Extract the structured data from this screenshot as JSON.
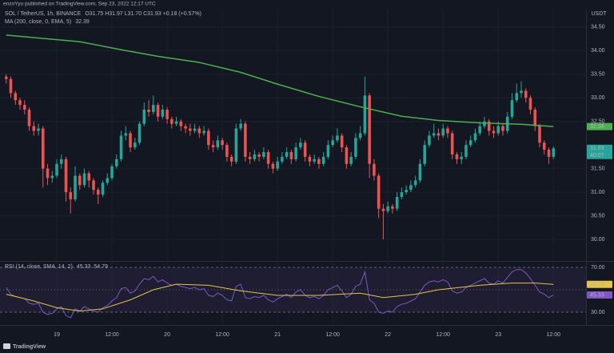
{
  "header": {
    "publisher": "enzoYyu published on TradingView.com, Sep 23, 2022 12:17 UTC"
  },
  "footer": {
    "logo": "TradingView"
  },
  "chart_data": [
    {
      "type": "candlestick",
      "title": "SOL / TetherUS, 1h, BINANCE",
      "ohlc_text": "O31.75 H31.97 L31.70 C31.93 +0.18 (+0.57%)",
      "currency": "USDT",
      "countdown": "40:07",
      "up_color": "#26a69a",
      "down_color": "#ef5350",
      "grid": true,
      "xlim": [
        -1,
        124
      ],
      "xticks": [
        {
          "value": 11,
          "label": "19"
        },
        {
          "value": 23,
          "label": "12:00"
        },
        {
          "value": 35,
          "label": "20"
        },
        {
          "value": 47,
          "label": "12:00"
        },
        {
          "value": 59,
          "label": "21"
        },
        {
          "value": 71,
          "label": "12:00"
        },
        {
          "value": 83,
          "label": "22"
        },
        {
          "value": 95,
          "label": "12:00"
        },
        {
          "value": 107,
          "label": "23"
        },
        {
          "value": 119,
          "label": "12:00"
        }
      ],
      "ylim": [
        29.56,
        34.87
      ],
      "yticks": [
        {
          "value": 30,
          "label": "30.00"
        },
        {
          "value": 30.5,
          "label": "30.50"
        },
        {
          "value": 31,
          "label": "31.00"
        },
        {
          "value": 31.5,
          "label": "31.50"
        },
        {
          "value": 32.5,
          "label": "32.50"
        },
        {
          "value": 33,
          "label": "33.00"
        },
        {
          "value": 33.5,
          "label": "33.50"
        },
        {
          "value": 34,
          "label": "34.00"
        },
        {
          "value": 34.5,
          "label": "34.50"
        }
      ],
      "open": [
        33.45,
        33.4,
        33.1,
        32.95,
        32.85,
        32.75,
        32.4,
        32.3,
        32.35,
        31.5,
        31.3,
        31.35,
        31.6,
        31.7,
        31.0,
        30.85,
        31.35,
        31.15,
        31.4,
        31.25,
        31.05,
        30.95,
        31.2,
        31.3,
        31.55,
        31.7,
        32.2,
        32.25,
        31.95,
        32.05,
        32.45,
        32.75,
        32.7,
        32.85,
        32.6,
        32.75,
        32.55,
        32.45,
        32.5,
        32.4,
        32.35,
        32.3,
        32.35,
        32.25,
        32.3,
        32.0,
        31.95,
        32.1,
        32.0,
        31.75,
        31.65,
        32.35,
        32.45,
        31.75,
        31.7,
        31.8,
        31.75,
        31.85,
        31.6,
        31.5,
        31.65,
        31.75,
        31.85,
        31.7,
        31.95,
        32.05,
        31.75,
        31.65,
        31.7,
        31.6,
        31.75,
        32.0,
        32.1,
        32.2,
        31.95,
        31.6,
        31.75,
        32.15,
        32.25,
        33.05,
        31.6,
        31.35,
        30.65,
        30.6,
        30.7,
        30.65,
        30.9,
        31.0,
        31.05,
        31.15,
        31.25,
        31.6,
        32.0,
        32.2,
        32.25,
        32.2,
        32.35,
        32.25,
        31.8,
        31.7,
        31.75,
        32.0,
        32.1,
        32.25,
        32.4,
        32.5,
        32.3,
        32.25,
        32.4,
        32.3,
        32.6,
        32.95,
        33.1,
        33.15,
        33.0,
        32.75,
        32.4,
        32.05,
        31.9,
        31.75
      ],
      "high": [
        33.5,
        33.45,
        33.15,
        33.0,
        32.95,
        32.8,
        32.5,
        32.45,
        32.4,
        31.6,
        31.45,
        31.7,
        31.8,
        31.75,
        31.1,
        31.55,
        31.4,
        31.5,
        31.45,
        31.3,
        31.1,
        31.25,
        31.4,
        31.6,
        31.8,
        32.3,
        32.4,
        32.3,
        32.15,
        32.5,
        32.9,
        32.95,
        33.05,
        32.9,
        32.85,
        32.8,
        32.6,
        32.6,
        32.55,
        32.45,
        32.45,
        32.45,
        32.4,
        32.4,
        32.35,
        32.1,
        32.2,
        32.15,
        32.05,
        31.8,
        32.45,
        32.55,
        32.5,
        31.85,
        31.9,
        31.85,
        31.95,
        31.9,
        31.65,
        31.75,
        31.85,
        31.95,
        31.9,
        32.05,
        32.15,
        32.1,
        31.8,
        31.8,
        31.75,
        31.85,
        32.1,
        32.2,
        32.35,
        32.25,
        32.0,
        31.85,
        32.25,
        32.4,
        33.45,
        33.1,
        31.7,
        31.4,
        30.75,
        30.8,
        30.75,
        31.0,
        31.1,
        31.15,
        31.25,
        31.35,
        31.7,
        32.1,
        32.3,
        32.45,
        32.35,
        32.45,
        32.4,
        32.3,
        31.85,
        31.85,
        32.1,
        32.2,
        32.35,
        32.5,
        32.6,
        32.55,
        32.4,
        32.5,
        32.45,
        32.7,
        33.1,
        33.3,
        33.35,
        33.2,
        33.05,
        32.8,
        32.45,
        32.1,
        31.95,
        31.97
      ],
      "low": [
        33.3,
        33.0,
        32.85,
        32.75,
        32.65,
        32.3,
        32.2,
        32.2,
        31.1,
        31.15,
        31.2,
        31.3,
        31.5,
        30.8,
        30.55,
        30.8,
        31.05,
        31.1,
        31.1,
        30.95,
        30.75,
        30.9,
        31.15,
        31.25,
        31.5,
        31.65,
        32.1,
        31.85,
        31.9,
        32.0,
        32.4,
        32.6,
        32.65,
        32.5,
        32.55,
        32.45,
        32.35,
        32.4,
        32.3,
        32.25,
        32.2,
        32.25,
        32.15,
        32.2,
        31.9,
        31.85,
        31.9,
        31.9,
        31.65,
        31.55,
        31.6,
        32.3,
        31.65,
        31.6,
        31.65,
        31.65,
        31.7,
        31.5,
        31.4,
        31.45,
        31.6,
        31.7,
        31.6,
        31.65,
        31.9,
        31.65,
        31.55,
        31.6,
        31.5,
        31.55,
        31.7,
        31.95,
        32.05,
        31.85,
        31.5,
        31.55,
        31.7,
        32.1,
        32.2,
        31.3,
        31.25,
        30.45,
        30.0,
        30.55,
        30.55,
        30.6,
        30.85,
        30.95,
        31.0,
        31.1,
        31.2,
        31.55,
        31.95,
        32.15,
        32.1,
        32.15,
        32.15,
        31.7,
        31.6,
        31.6,
        31.7,
        31.95,
        32.05,
        32.2,
        32.35,
        32.2,
        32.15,
        32.2,
        32.2,
        32.25,
        32.55,
        32.9,
        33.0,
        32.9,
        32.65,
        32.3,
        31.95,
        31.8,
        31.6,
        31.7
      ],
      "close": [
        33.4,
        33.1,
        32.95,
        32.85,
        32.75,
        32.4,
        32.3,
        32.35,
        31.5,
        31.3,
        31.35,
        31.6,
        31.7,
        31.0,
        30.85,
        31.35,
        31.15,
        31.4,
        31.25,
        31.05,
        30.95,
        31.2,
        31.3,
        31.55,
        31.7,
        32.2,
        32.25,
        31.95,
        32.05,
        32.45,
        32.75,
        32.7,
        32.85,
        32.6,
        32.75,
        32.55,
        32.45,
        32.5,
        32.4,
        32.35,
        32.3,
        32.35,
        32.25,
        32.3,
        32.0,
        31.95,
        32.1,
        32.0,
        31.75,
        31.65,
        32.35,
        32.45,
        31.75,
        31.7,
        31.8,
        31.75,
        31.85,
        31.6,
        31.5,
        31.65,
        31.75,
        31.85,
        31.7,
        31.95,
        32.05,
        31.75,
        31.65,
        31.7,
        31.6,
        31.75,
        32.0,
        32.1,
        32.2,
        31.95,
        31.6,
        31.75,
        32.15,
        32.25,
        33.05,
        31.6,
        31.35,
        30.65,
        30.6,
        30.7,
        30.65,
        30.9,
        31.0,
        31.05,
        31.15,
        31.25,
        31.6,
        32.0,
        32.2,
        32.25,
        32.2,
        32.35,
        32.25,
        31.8,
        31.7,
        31.75,
        32.0,
        32.1,
        32.25,
        32.4,
        32.5,
        32.3,
        32.25,
        32.4,
        32.3,
        32.6,
        32.95,
        33.1,
        33.15,
        33.0,
        32.75,
        32.4,
        32.05,
        31.9,
        31.75,
        31.93
      ],
      "overlays": [
        {
          "name": "MA (200, close, 0, EMA, 5)",
          "color": "#4caf50",
          "x": [
            0,
            16,
            25,
            33,
            42,
            51,
            59,
            68,
            77,
            86,
            94,
            103,
            112,
            119
          ],
          "values": [
            34.33,
            34.19,
            34.02,
            33.88,
            33.75,
            33.54,
            33.29,
            33.03,
            32.81,
            32.61,
            32.52,
            32.47,
            32.44,
            32.39
          ]
        }
      ]
    },
    {
      "type": "line",
      "title": "RSI (14, close, SMA, 14, 2)",
      "ylim": [
        20.7,
        74.3
      ],
      "yticks": [
        {
          "value": 30,
          "label": "30.00"
        },
        {
          "value": 70,
          "label": "70.00"
        }
      ],
      "hlines": [
        50
      ],
      "band_color": "#7e57c2",
      "series": [
        {
          "color": "#7e57c2",
          "values": [
            52,
            46,
            44,
            43,
            42,
            38,
            37,
            38,
            30,
            28,
            29,
            33,
            35,
            27,
            25,
            33,
            31,
            35,
            33,
            31,
            30,
            34,
            36,
            40,
            43,
            51,
            52,
            47,
            49,
            55,
            60,
            59,
            62,
            57,
            59,
            56,
            54,
            55,
            53,
            52,
            51,
            52,
            50,
            51,
            45,
            44,
            47,
            45,
            41,
            40,
            53,
            55,
            43,
            42,
            44,
            43,
            45,
            41,
            39,
            42,
            44,
            46,
            43,
            48,
            50,
            45,
            43,
            44,
            42,
            45,
            50,
            52,
            54,
            49,
            43,
            46,
            53,
            55,
            66,
            41,
            38,
            30,
            29,
            31,
            30,
            35,
            37,
            38,
            40,
            42,
            48,
            54,
            57,
            58,
            57,
            59,
            57,
            49,
            47,
            48,
            52,
            54,
            56,
            58,
            60,
            56,
            55,
            58,
            56,
            61,
            66,
            68,
            68,
            65,
            60,
            54,
            48,
            46,
            43,
            45.33
          ]
        },
        {
          "color": "#e6c44a",
          "x": [
            0,
            6,
            11,
            16,
            21,
            27,
            32,
            37,
            44,
            51,
            59,
            68,
            77,
            82,
            89,
            94,
            103,
            110,
            115,
            119
          ],
          "values": [
            46,
            40,
            34,
            31,
            33,
            41,
            50,
            55,
            54,
            49,
            45,
            45,
            47,
            43,
            46,
            50,
            54,
            56,
            56,
            54.79
          ]
        }
      ]
    }
  ]
}
